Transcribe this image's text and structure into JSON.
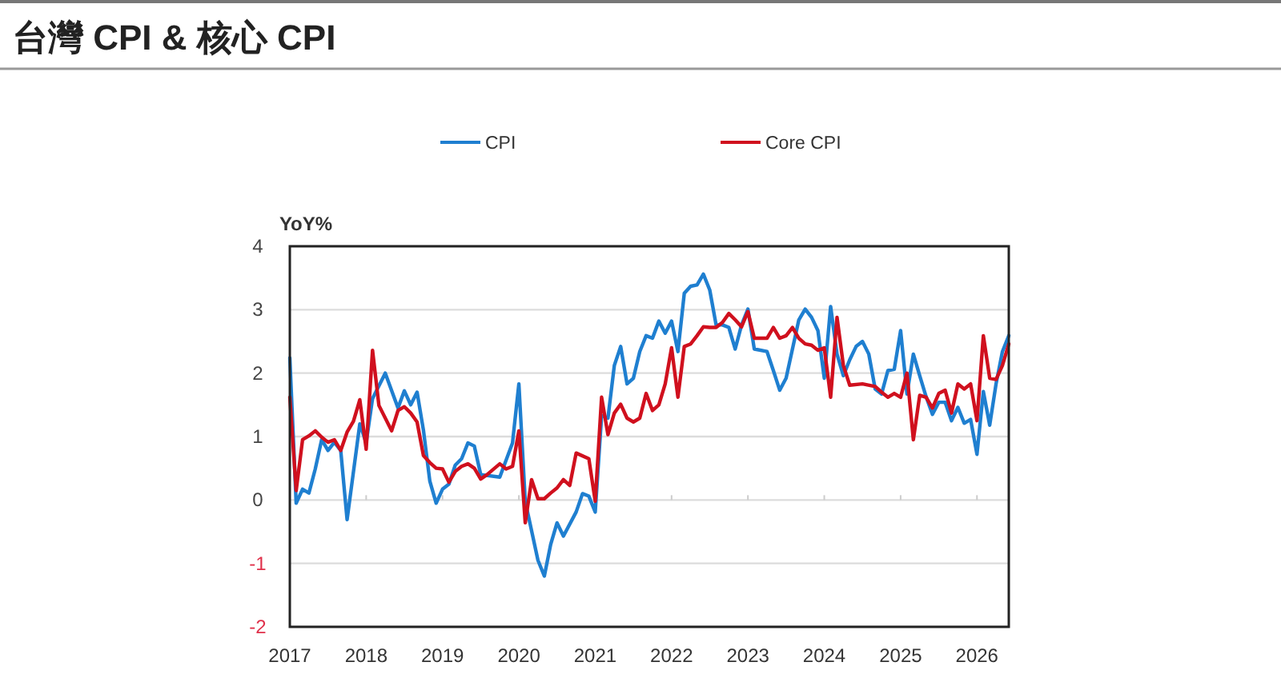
{
  "chart_data": {
    "type": "line",
    "title": "台灣 CPI & 核心 CPI",
    "ylabel": "YoY%",
    "xlim": [
      "2017-01",
      "2026-06"
    ],
    "xticks": [
      "2017",
      "2018",
      "2019",
      "2020",
      "2021",
      "2022",
      "2023",
      "2024",
      "2025",
      "2026"
    ],
    "ylim": [
      -2,
      4
    ],
    "yticks": [
      -2,
      -1,
      0,
      1,
      2,
      3,
      4
    ],
    "grid": "y",
    "legend": "top",
    "line_style": "solid",
    "series": [
      {
        "name": "CPI",
        "color": "#1f7fd0",
        "x": [
          "2017-01",
          "2017-02",
          "2017-03",
          "2017-04",
          "2017-05",
          "2017-06",
          "2017-07",
          "2017-08",
          "2017-09",
          "2017-10",
          "2017-12",
          "2018-01",
          "2018-02",
          "2018-04",
          "2018-06",
          "2018-07",
          "2018-08",
          "2018-09",
          "2018-10",
          "2018-11",
          "2018-12",
          "2019-01",
          "2019-02",
          "2019-03",
          "2019-04",
          "2019-05",
          "2019-06",
          "2019-07",
          "2019-10",
          "2019-12",
          "2020-01",
          "2020-02",
          "2020-04",
          "2020-05",
          "2020-06",
          "2020-07",
          "2020-08",
          "2020-10",
          "2020-11",
          "2020-12",
          "2021-01",
          "2021-02",
          "2021-03",
          "2021-04",
          "2021-05",
          "2021-06",
          "2021-07",
          "2021-08",
          "2021-09",
          "2021-10",
          "2021-11",
          "2021-12",
          "2022-01",
          "2022-02",
          "2022-03",
          "2022-04",
          "2022-05",
          "2022-06",
          "2022-07",
          "2022-08",
          "2022-09",
          "2022-10",
          "2022-11",
          "2022-12",
          "2023-01",
          "2023-02",
          "2023-04",
          "2023-05",
          "2023-06",
          "2023-07",
          "2023-09",
          "2023-10",
          "2023-11",
          "2023-12",
          "2024-01",
          "2024-02",
          "2024-03",
          "2024-04",
          "2024-05",
          "2024-06",
          "2024-07",
          "2024-08",
          "2024-09",
          "2024-10",
          "2024-11",
          "2024-12",
          "2025-01",
          "2025-02",
          "2025-03",
          "2025-04",
          "2025-05",
          "2025-06",
          "2025-07",
          "2025-08",
          "2025-09",
          "2025-10",
          "2025-11",
          "2025-12",
          "2026-01",
          "2026-02",
          "2026-03",
          "2026-04",
          "2026-05",
          "2026-06"
        ],
        "values": [
          2.24,
          -0.05,
          0.17,
          0.11,
          0.49,
          0.95,
          0.78,
          0.91,
          0.78,
          -0.31,
          1.2,
          0.9,
          1.6,
          2.0,
          1.45,
          1.72,
          1.5,
          1.7,
          1.1,
          0.3,
          -0.05,
          0.17,
          0.25,
          0.55,
          0.65,
          0.9,
          0.85,
          0.4,
          0.36,
          0.9,
          1.83,
          -0.02,
          -0.95,
          -1.2,
          -0.7,
          -0.36,
          -0.57,
          -0.19,
          0.1,
          0.06,
          -0.19,
          1.33,
          1.29,
          2.12,
          2.42,
          1.83,
          1.92,
          2.34,
          2.59,
          2.55,
          2.82,
          2.63,
          2.82,
          2.34,
          3.26,
          3.37,
          3.39,
          3.56,
          3.31,
          2.76,
          2.76,
          2.72,
          2.38,
          2.76,
          3.01,
          2.38,
          2.34,
          2.04,
          1.73,
          1.92,
          2.84,
          3.01,
          2.88,
          2.67,
          1.92,
          3.05,
          2.3,
          1.96,
          2.21,
          2.42,
          2.5,
          2.3,
          1.75,
          1.67,
          2.04,
          2.06,
          2.67,
          1.67,
          2.3,
          1.96,
          1.63,
          1.35,
          1.54,
          1.54,
          1.25,
          1.46,
          1.21,
          1.27,
          0.72,
          1.71,
          1.18,
          1.83,
          2.34,
          2.59
        ]
      },
      {
        "name": "Core CPI",
        "color": "#d0101e",
        "x": [
          "2017-01",
          "2017-02",
          "2017-03",
          "2017-04",
          "2017-05",
          "2017-06",
          "2017-07",
          "2017-08",
          "2017-09",
          "2017-10",
          "2017-11",
          "2017-12",
          "2018-01",
          "2018-02",
          "2018-03",
          "2018-05",
          "2018-06",
          "2018-07",
          "2018-08",
          "2018-09",
          "2018-10",
          "2018-11",
          "2018-12",
          "2019-01",
          "2019-02",
          "2019-03",
          "2019-04",
          "2019-05",
          "2019-06",
          "2019-07",
          "2019-08",
          "2019-10",
          "2019-11",
          "2019-12",
          "2020-01",
          "2020-02",
          "2020-03",
          "2020-04",
          "2020-05",
          "2020-06",
          "2020-07",
          "2020-08",
          "2020-09",
          "2020-10",
          "2020-12",
          "2021-01",
          "2021-02",
          "2021-03",
          "2021-04",
          "2021-05",
          "2021-06",
          "2021-07",
          "2021-08",
          "2021-09",
          "2021-10",
          "2021-11",
          "2021-12",
          "2022-01",
          "2022-02",
          "2022-03",
          "2022-04",
          "2022-05",
          "2022-06",
          "2022-07",
          "2022-08",
          "2022-09",
          "2022-10",
          "2022-11",
          "2022-12",
          "2023-01",
          "2023-02",
          "2023-03",
          "2023-04",
          "2023-05",
          "2023-06",
          "2023-07",
          "2023-08",
          "2023-09",
          "2023-10",
          "2023-11",
          "2023-12",
          "2024-01",
          "2024-02",
          "2024-03",
          "2024-04",
          "2024-05",
          "2024-07",
          "2024-09",
          "2024-10",
          "2024-11",
          "2024-12",
          "2025-01",
          "2025-02",
          "2025-03",
          "2025-04",
          "2025-05",
          "2025-06",
          "2025-07",
          "2025-08",
          "2025-09",
          "2025-10",
          "2025-11",
          "2025-12",
          "2026-01",
          "2026-02",
          "2026-03",
          "2026-04",
          "2026-05",
          "2026-06"
        ],
        "values": [
          1.62,
          0.15,
          0.95,
          1.01,
          1.09,
          0.99,
          0.91,
          0.95,
          0.78,
          1.07,
          1.24,
          1.58,
          0.8,
          2.36,
          1.49,
          1.09,
          1.41,
          1.47,
          1.37,
          1.23,
          0.7,
          0.59,
          0.5,
          0.49,
          0.28,
          0.45,
          0.53,
          0.57,
          0.5,
          0.33,
          0.4,
          0.57,
          0.49,
          0.53,
          1.09,
          -0.36,
          0.32,
          0.02,
          0.02,
          0.11,
          0.19,
          0.32,
          0.23,
          0.74,
          0.65,
          -0.02,
          1.62,
          1.03,
          1.37,
          1.51,
          1.29,
          1.23,
          1.29,
          1.68,
          1.41,
          1.5,
          1.83,
          2.4,
          1.62,
          2.42,
          2.46,
          2.59,
          2.73,
          2.72,
          2.72,
          2.8,
          2.94,
          2.84,
          2.73,
          2.97,
          2.55,
          2.55,
          2.55,
          2.72,
          2.55,
          2.59,
          2.72,
          2.55,
          2.46,
          2.44,
          2.36,
          2.4,
          1.62,
          2.88,
          2.12,
          1.81,
          1.83,
          1.79,
          1.7,
          1.62,
          1.68,
          1.62,
          2.0,
          0.95,
          1.65,
          1.62,
          1.45,
          1.68,
          1.73,
          1.37,
          1.83,
          1.75,
          1.83,
          1.25,
          2.59,
          1.92,
          1.9,
          2.12,
          2.46
        ]
      }
    ]
  }
}
